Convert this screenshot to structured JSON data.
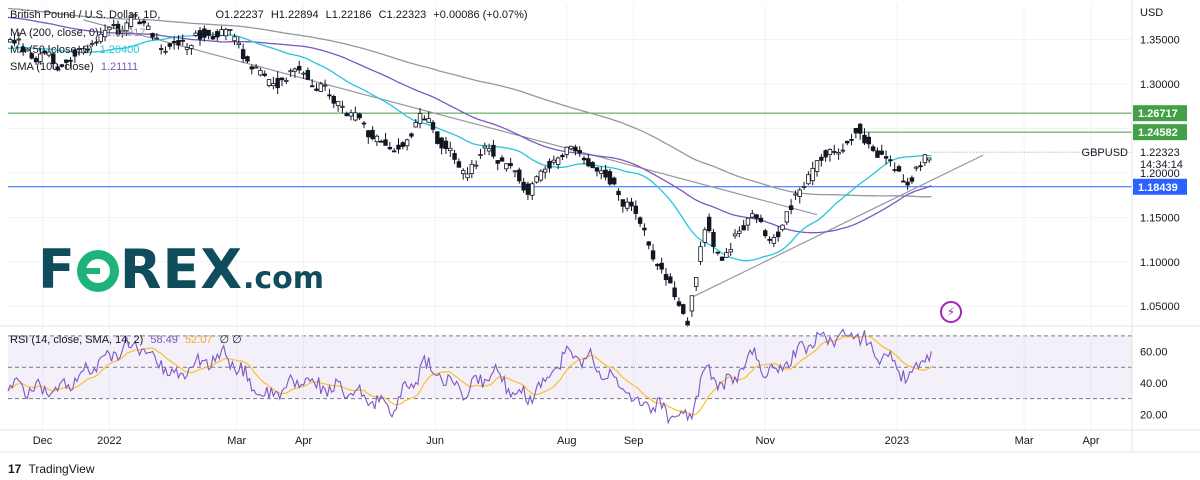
{
  "header": {
    "title": "British Pound / U.S. Dollar, 1D,",
    "open": "O1.22237",
    "high": "H1.22894",
    "low": "L1.22186",
    "close": "C1.22323",
    "change": "+0.00086 (+0.07%)"
  },
  "indicators": [
    {
      "label": "MA (200, close, 0)",
      "value": "1.19917",
      "color": "#9598a1"
    },
    {
      "label": "MA (50, close, 0)",
      "value": "1.20400",
      "color": "#26c6da"
    },
    {
      "label": "SMA (100, close)",
      "value": "1.21111",
      "color": "#7e57c2"
    }
  ],
  "rsi_label": {
    "label": "RSI (14, close, SMA, 14, 2)",
    "value1": "58.49",
    "value2": "52.07",
    "flags": "∅ ∅"
  },
  "branding": {
    "logo_left": "F",
    "logo_right": "REX",
    "logo_suffix": ".com",
    "tradingview": "TradingView",
    "tv_mark": "17"
  },
  "colors": {
    "up": "#131722",
    "down": "#131722",
    "ma200": "#9598a1",
    "ma50": "#26c6da",
    "sma100": "#7e57c2",
    "rsi": "#7e57c2",
    "rsi_sma": "#fbc02d",
    "support": "#2962ff",
    "resistance": "#43a047"
  },
  "chart_data": {
    "type": "candlestick",
    "symbol_label": "GBPUSD",
    "currency_label": "USD",
    "countdown": "14:34:14",
    "price_axis": {
      "ticks": [
        "1.35000",
        "1.30000",
        "1.25000",
        "1.20000",
        "1.15000",
        "1.10000",
        "1.05000"
      ],
      "min": 1.03,
      "max": 1.39
    },
    "x_labels": [
      "Dec",
      "2022",
      "Mar",
      "Apr",
      "Jun",
      "Aug",
      "Sep",
      "Nov",
      "2023",
      "Mar",
      "Apr"
    ],
    "x_label_dates": [
      "2021-12-01",
      "2022-01-01",
      "2022-03-01",
      "2022-04-01",
      "2022-06-01",
      "2022-08-01",
      "2022-09-01",
      "2022-11-01",
      "2023-01-01",
      "2023-03-01",
      "2023-04-01"
    ],
    "date_range": [
      "2021-11-15",
      "2023-04-20"
    ],
    "last_date": "2023-01-17",
    "current_price": {
      "value": 1.22323,
      "label": "1.22323"
    },
    "levels": [
      {
        "value": 1.26717,
        "label": "1.26717",
        "kind": "resistance"
      },
      {
        "value": 1.24582,
        "label": "1.24582",
        "kind": "resistance",
        "from": "2022-12-14"
      },
      {
        "value": 1.18439,
        "label": "1.18439",
        "kind": "support"
      }
    ],
    "trendlines": [
      {
        "from": [
          "2021-12-20",
          1.372
        ],
        "to": [
          "2022-11-25",
          1.153
        ]
      },
      {
        "from": [
          "2022-09-28",
          1.06
        ],
        "to": [
          "2023-02-10",
          1.22
        ]
      }
    ],
    "price_keypoints": [
      [
        "2021-11-15",
        1.347
      ],
      [
        "2021-12-08",
        1.322
      ],
      [
        "2022-01-13",
        1.374
      ],
      [
        "2022-01-27",
        1.34
      ],
      [
        "2022-02-23",
        1.362
      ],
      [
        "2022-03-15",
        1.3
      ],
      [
        "2022-03-31",
        1.315
      ],
      [
        "2022-05-13",
        1.222
      ],
      [
        "2022-05-27",
        1.263
      ],
      [
        "2022-06-14",
        1.2
      ],
      [
        "2022-06-27",
        1.228
      ],
      [
        "2022-07-14",
        1.182
      ],
      [
        "2022-08-01",
        1.225
      ],
      [
        "2022-08-12",
        1.215
      ],
      [
        "2022-08-31",
        1.16
      ],
      [
        "2022-09-26",
        1.035
      ],
      [
        "2022-10-05",
        1.145
      ],
      [
        "2022-10-12",
        1.099
      ],
      [
        "2022-10-27",
        1.16
      ],
      [
        "2022-11-03",
        1.118
      ],
      [
        "2022-11-24",
        1.21
      ],
      [
        "2022-12-14",
        1.245
      ],
      [
        "2023-01-06",
        1.19
      ],
      [
        "2023-01-17",
        1.223
      ]
    ],
    "rsi": {
      "ticks": [
        "60.00",
        "40.00",
        "20.00"
      ],
      "min": 10,
      "max": 75,
      "upper": 70,
      "middle": 50,
      "lower": 30,
      "keypoints": [
        [
          "2021-11-15",
          38
        ],
        [
          "2021-12-08",
          35
        ],
        [
          "2022-01-13",
          66
        ],
        [
          "2022-02-01",
          45
        ],
        [
          "2022-02-23",
          58
        ],
        [
          "2022-03-15",
          30
        ],
        [
          "2022-03-31",
          42
        ],
        [
          "2022-05-13",
          25
        ],
        [
          "2022-05-27",
          52
        ],
        [
          "2022-06-14",
          33
        ],
        [
          "2022-06-27",
          47
        ],
        [
          "2022-07-14",
          30
        ],
        [
          "2022-08-01",
          58
        ],
        [
          "2022-08-12",
          55
        ],
        [
          "2022-08-31",
          30
        ],
        [
          "2022-09-26",
          17
        ],
        [
          "2022-10-05",
          50
        ],
        [
          "2022-10-12",
          36
        ],
        [
          "2022-10-27",
          58
        ],
        [
          "2022-11-03",
          45
        ],
        [
          "2022-11-24",
          68
        ],
        [
          "2022-12-14",
          70
        ],
        [
          "2023-01-06",
          44
        ],
        [
          "2023-01-17",
          58.49
        ]
      ]
    }
  }
}
